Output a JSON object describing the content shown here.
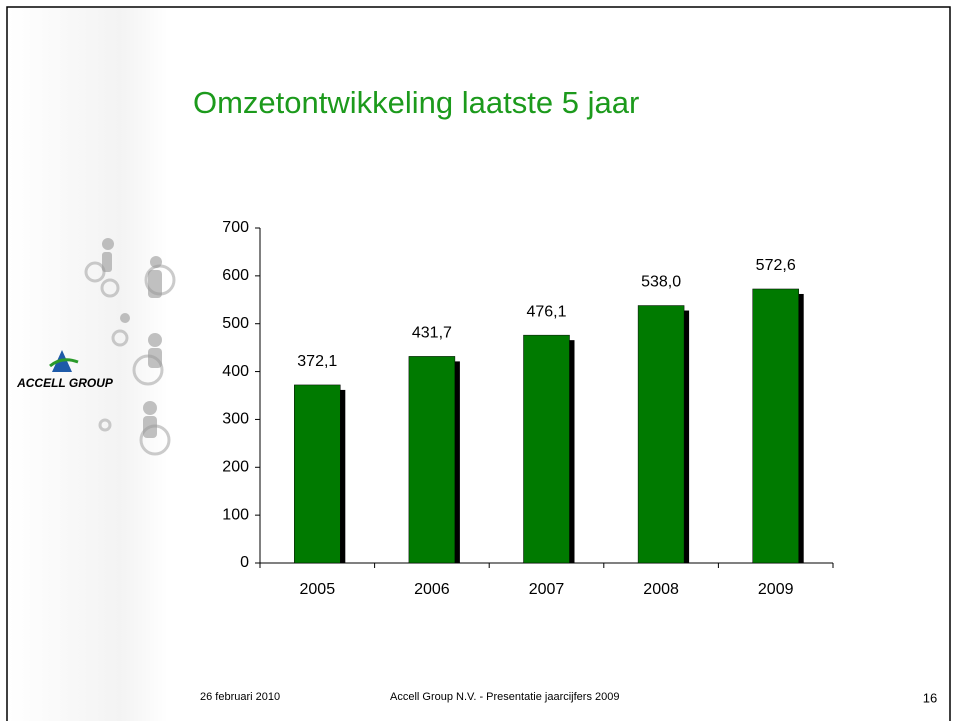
{
  "chart_data": {
    "type": "bar",
    "title": "Omzetontwikkeling laatste 5 jaar",
    "categories": [
      "2005",
      "2006",
      "2007",
      "2008",
      "2009"
    ],
    "values": [
      372.1,
      431.7,
      476.1,
      538.0,
      572.6
    ],
    "value_labels": [
      "372,1",
      "431,7",
      "476,1",
      "538,0",
      "572,6"
    ],
    "color": "#007a00",
    "shadow_color": "#000000",
    "ylim": [
      0,
      700
    ],
    "yticks": [
      0,
      100,
      200,
      300,
      400,
      500,
      600,
      700
    ],
    "grid": false
  },
  "logo": {
    "text": "ACCELL GROUP"
  },
  "footer": {
    "date": "26 februari 2010",
    "text": "Accell Group N.V. - Presentatie jaarcijfers 2009",
    "page": "16"
  }
}
